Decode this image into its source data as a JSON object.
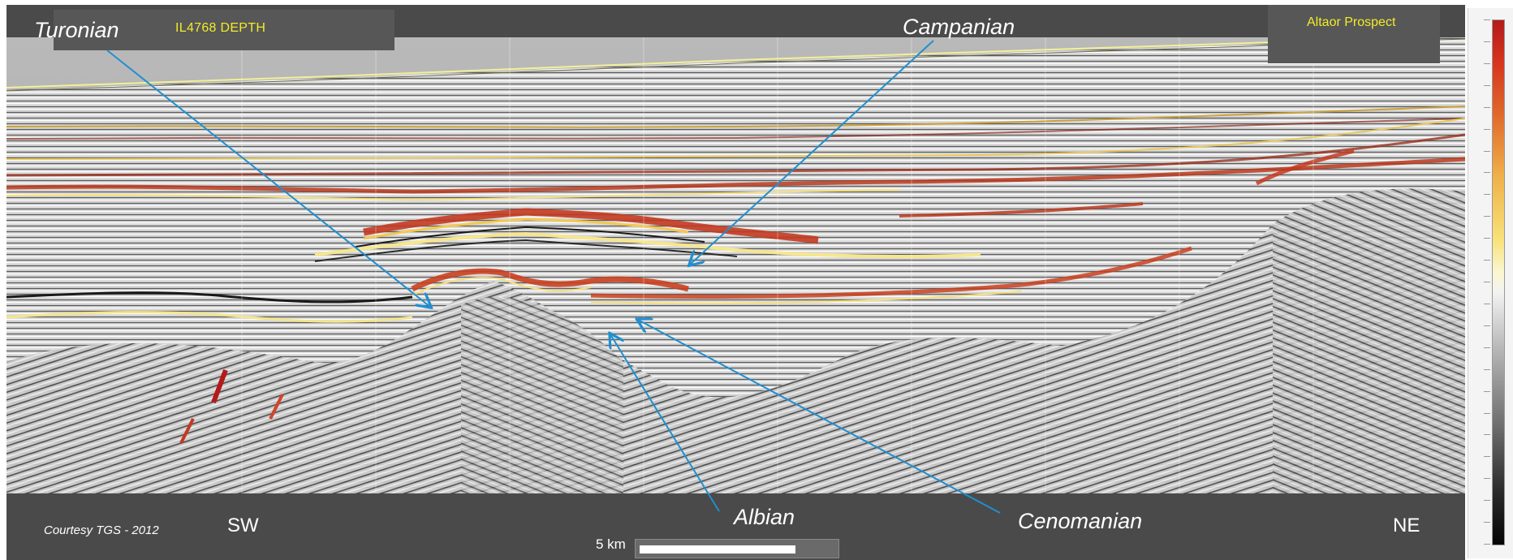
{
  "title": "IL4768 DEPTH",
  "prospect": "Altaor Prospect",
  "horizons": {
    "turonian": "Turonian",
    "campanian": "Campanian",
    "albian": "Albian",
    "cenomanian": "Cenomanian"
  },
  "directions": {
    "left": "SW",
    "right": "NE"
  },
  "credit": "Courtesy TGS - 2012",
  "scale_bar": {
    "label": "5 km"
  },
  "colors": {
    "arrow": "#1f8fd1",
    "title_text": "#f2ec27",
    "frame": "#4a4a4a"
  }
}
